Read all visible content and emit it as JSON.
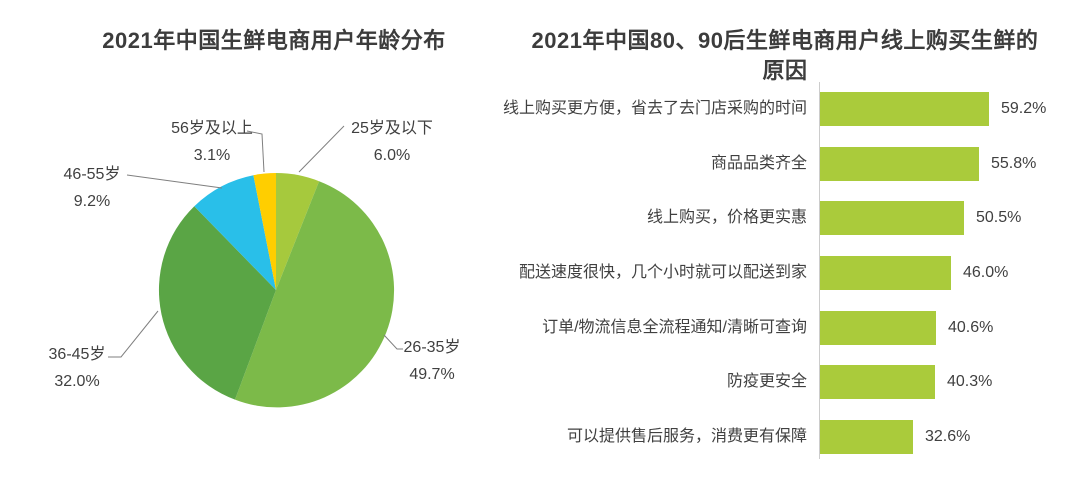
{
  "page": {
    "background": "#ffffff",
    "title_color": "#3c3c3c",
    "text_color": "#404040"
  },
  "chart_data": [
    {
      "type": "pie",
      "title": "2021年中国生鲜电商用户年龄分布",
      "labels": [
        "25岁及以下",
        "26-35岁",
        "36-45岁",
        "46-55岁",
        "56岁及以上"
      ],
      "values": [
        6.0,
        49.7,
        32.0,
        9.2,
        3.1
      ],
      "value_labels": [
        "6.0%",
        "49.7%",
        "32.0%",
        "9.2%",
        "3.1%"
      ],
      "colors": [
        "#a6c93d",
        "#7cba49",
        "#5aa545",
        "#29bfe9",
        "#ffce00"
      ],
      "start_angle": "12-o-clock",
      "direction": "clockwise",
      "leader_line_color": "#7f7f7f",
      "label_color": "#404040",
      "legend": "none"
    },
    {
      "type": "bar",
      "orientation": "horizontal",
      "title": "2021年中国80、90后生鲜电商用户线上购买生鲜的原因",
      "title_lines": [
        "2021年中国80、90后生鲜电商用户线上购买生鲜的",
        "原因"
      ],
      "categories": [
        "线上购买更方便，省去了去门店采购的时间",
        "商品品类齐全",
        "线上购买，价格更实惠",
        "配送速度很快，几个小时就可以配送到家",
        "订单/物流信息全流程通知/清晰可查询",
        "防疫更安全",
        "可以提供售后服务，消费更有保障"
      ],
      "values": [
        59.2,
        55.8,
        50.5,
        46.0,
        40.6,
        40.3,
        32.6
      ],
      "value_labels": [
        "59.2%",
        "55.8%",
        "50.5%",
        "46.0%",
        "40.6%",
        "40.3%",
        "32.6%"
      ],
      "bar_color": "#aacb3b",
      "axis_color": "#cccccc",
      "label_color": "#404040",
      "xlim": [
        0,
        70
      ],
      "grid": "off",
      "legend": "none"
    }
  ]
}
